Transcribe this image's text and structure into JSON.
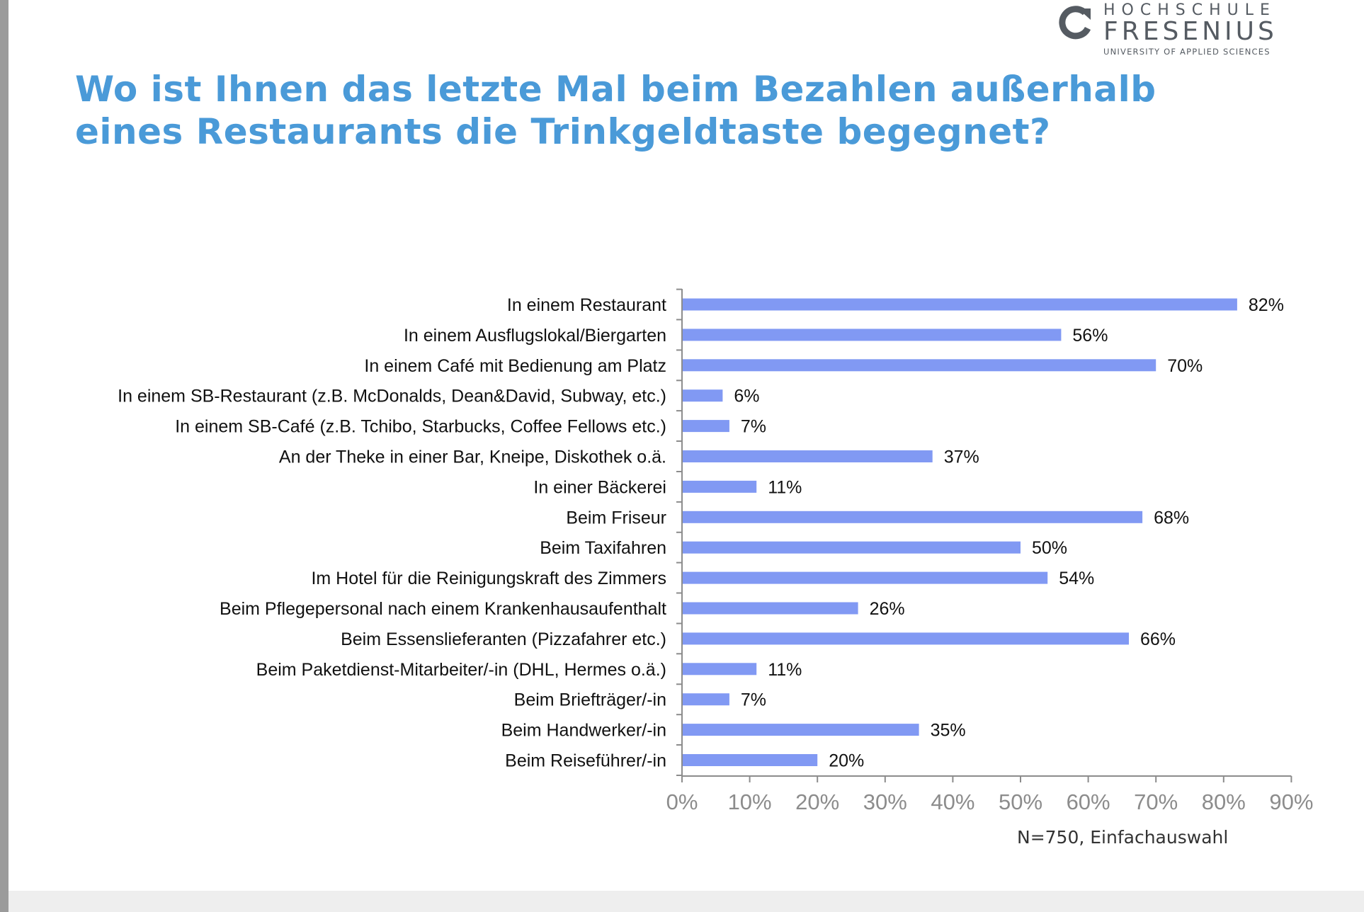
{
  "logo": {
    "line1": "HOCHSCHULE",
    "line2": "FRESENIUS",
    "line3": "UNIVERSITY OF APPLIED SCIENCES"
  },
  "title": "Wo ist Ihnen das letzte Mal beim Bezahlen außerhalb eines Restaurants die Trinkgeldtaste begegnet?",
  "note": "N=750, Einfachauswahl",
  "colors": {
    "title": "#4a9ad8",
    "bar": "#8199f3",
    "axis": "#8c8c8c",
    "tick_label": "#8c8c8c"
  },
  "chart_data": {
    "type": "bar",
    "orientation": "horizontal",
    "categories": [
      "In einem Restaurant",
      "In einem Ausflugslokal/Biergarten",
      "In einem Café mit Bedienung am Platz",
      "In einem SB-Restaurant (z.B. McDonalds, Dean&David, Subway, etc.)",
      "In einem SB-Café (z.B. Tchibo, Starbucks, Coffee Fellows etc.)",
      "An der Theke in einer Bar, Kneipe, Diskothek o.ä.",
      "In einer Bäckerei",
      "Beim Friseur",
      "Beim Taxifahren",
      "Im Hotel für die Reinigungskraft des Zimmers",
      "Beim Pflegepersonal nach einem Krankenhausaufenthalt",
      "Beim Essenslieferanten (Pizzafahrer etc.)",
      "Beim Paketdienst-Mitarbeiter/-in (DHL, Hermes o.ä.)",
      "Beim Briefträger/-in",
      "Beim Handwerker/-in",
      "Beim Reiseführer/-in"
    ],
    "values": [
      82,
      56,
      70,
      6,
      7,
      37,
      11,
      68,
      50,
      54,
      26,
      66,
      11,
      7,
      35,
      20
    ],
    "value_labels": [
      "82%",
      "56%",
      "70%",
      "6%",
      "7%",
      "37%",
      "11%",
      "68%",
      "50%",
      "54%",
      "26%",
      "66%",
      "11%",
      "7%",
      "35%",
      "20%"
    ],
    "xlim": [
      0,
      90
    ],
    "x_ticks": [
      0,
      10,
      20,
      30,
      40,
      50,
      60,
      70,
      80,
      90
    ],
    "x_tick_labels": [
      "0%",
      "10%",
      "20%",
      "30%",
      "40%",
      "50%",
      "60%",
      "70%",
      "80%",
      "90%"
    ],
    "xlabel": "",
    "ylabel": "",
    "grid": false,
    "legend": false
  }
}
